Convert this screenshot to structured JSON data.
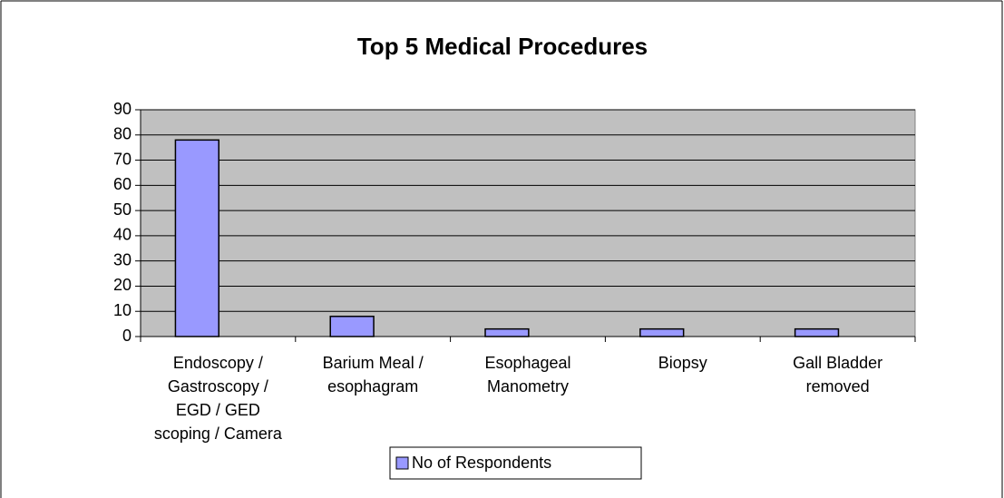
{
  "chart_data": {
    "type": "bar",
    "title": "Top 5 Medical Procedures",
    "categories": [
      "Endoscopy / Gastroscopy / EGD / GED scoping / Camera",
      "Barium Meal / esophagram",
      "Esophageal Manometry",
      "Biopsy",
      "Gall Bladder removed"
    ],
    "series": [
      {
        "name": "No of Respondents",
        "color": "#9999ff",
        "values": [
          78,
          8,
          3,
          3,
          3
        ]
      }
    ],
    "ylim": [
      0,
      90
    ],
    "yticks": [
      0,
      10,
      20,
      30,
      40,
      50,
      60,
      70,
      80,
      90
    ],
    "grid": true,
    "legend": "bottom"
  }
}
